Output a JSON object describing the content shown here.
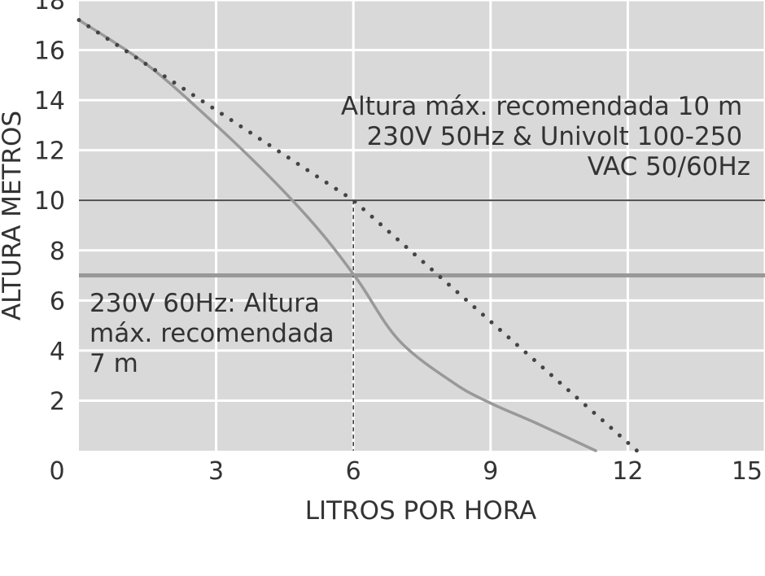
{
  "chart_data": {
    "type": "line",
    "title": "",
    "xlabel": "LITROS POR HORA",
    "ylabel": "ALTURA METROS",
    "xlim": [
      0,
      15
    ],
    "ylim": [
      0,
      18
    ],
    "x_ticks": [
      0,
      3,
      6,
      9,
      12,
      15
    ],
    "y_ticks": [
      0,
      2,
      4,
      6,
      8,
      10,
      12,
      14,
      16,
      18
    ],
    "grid": true,
    "background": "#d9d9d9",
    "series": [
      {
        "style": "solid",
        "color": "#999999",
        "points": [
          [
            0,
            17.2
          ],
          [
            1.5,
            15.4
          ],
          [
            3,
            13
          ],
          [
            4.3,
            10.7
          ],
          [
            5.3,
            8.7
          ],
          [
            6.1,
            6.8
          ],
          [
            7,
            4.4
          ],
          [
            8.2,
            2.7
          ],
          [
            9,
            1.9
          ],
          [
            10,
            1.1
          ],
          [
            11.3,
            0
          ]
        ]
      },
      {
        "style": "dotted",
        "color": "#444444",
        "points": [
          [
            0,
            17.2
          ],
          [
            6,
            10
          ],
          [
            12.2,
            0
          ]
        ]
      }
    ],
    "reference_lines": [
      {
        "y": 10,
        "color": "#444444"
      },
      {
        "y": 7,
        "color": "#999999"
      }
    ],
    "vertical_marker": {
      "x": 6,
      "y_top": 10,
      "style": "dashed"
    },
    "annotations": {
      "line10": [
        "Altura máx. recomendada 10 m",
        "230V 50Hz & Univolt 100-250",
        "VAC 50/60Hz"
      ],
      "line7": [
        "230V 60Hz: Altura",
        "máx. recomendada",
        "7 m"
      ]
    }
  }
}
